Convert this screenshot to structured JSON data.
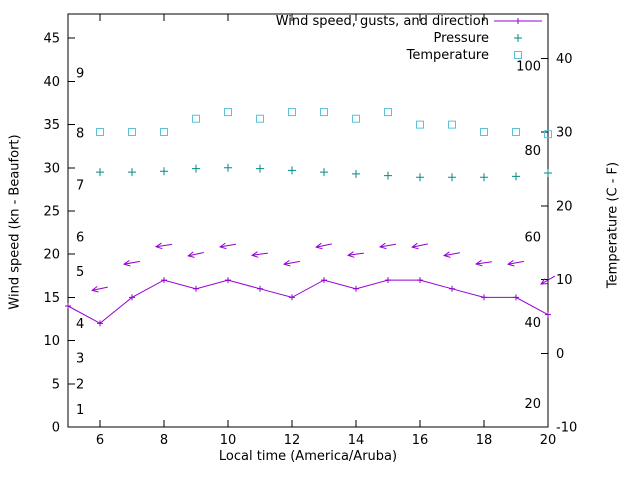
{
  "chart_data": {
    "type": "line",
    "title": "",
    "xlabel": "Local time (America/Aruba)",
    "ylabel_left": "Wind speed (kn - Beaufort)",
    "ylabel_right": "Temperature (C - F)",
    "x_range": [
      5,
      20
    ],
    "x_ticks": [
      6,
      8,
      10,
      12,
      14,
      16,
      18,
      20
    ],
    "y_left_range": [
      0,
      47.8
    ],
    "y_left_ticks": [
      0,
      5,
      10,
      15,
      20,
      25,
      30,
      35,
      40,
      45
    ],
    "y_right_range": [
      -10,
      46
    ],
    "y_right_ticks": [
      -10,
      0,
      10,
      20,
      30,
      40
    ],
    "beaufort_scale_labels": [
      {
        "label": "1",
        "kn": 2
      },
      {
        "label": "2",
        "kn": 5
      },
      {
        "label": "3",
        "kn": 8
      },
      {
        "label": "4",
        "kn": 12
      },
      {
        "label": "5",
        "kn": 18
      },
      {
        "label": "6",
        "kn": 22
      },
      {
        "label": "7",
        "kn": 28
      },
      {
        "label": "8",
        "kn": 34
      },
      {
        "label": "9",
        "kn": 41
      }
    ],
    "inner_right_labels": [
      {
        "label": "20",
        "kn": 2.7
      },
      {
        "label": "40",
        "kn": 12.1
      },
      {
        "label": "60",
        "kn": 22
      },
      {
        "label": "80",
        "kn": 32
      },
      {
        "label": "100",
        "kn": 41.8
      }
    ],
    "legend": {
      "position": "top-right",
      "entries": [
        {
          "label": "Wind speed, gusts, and direction",
          "series": "wind"
        },
        {
          "label": "Pressure",
          "series": "pressure"
        },
        {
          "label": "Temperature",
          "series": "temperature"
        }
      ]
    },
    "series": {
      "wind": {
        "name": "Wind speed",
        "color": "#9400d3",
        "axis": "left",
        "style": "line-plus",
        "x": [
          5,
          6,
          7,
          8,
          9,
          10,
          11,
          12,
          13,
          14,
          15,
          16,
          17,
          18,
          19,
          20
        ],
        "values": [
          14,
          12,
          15,
          17,
          16,
          17,
          16,
          15,
          17,
          16,
          17,
          17,
          16,
          15,
          15,
          13
        ]
      },
      "gusts": {
        "name": "Gusts",
        "color": "#9400d3",
        "axis": "left",
        "style": "arrow",
        "x": [
          6,
          7,
          8,
          9,
          10,
          11,
          12,
          13,
          14,
          15,
          16,
          17,
          18,
          19,
          20
        ],
        "values": [
          16,
          19,
          21,
          20,
          21,
          20,
          19,
          21,
          20,
          21,
          21,
          20,
          19,
          19,
          17
        ],
        "arrow_angles_deg": [
          168,
          170,
          172,
          168,
          170,
          172,
          170,
          168,
          172,
          170,
          168,
          170,
          172,
          170,
          150
        ]
      },
      "pressure": {
        "name": "Pressure",
        "color": "#008b8b",
        "axis": "left",
        "style": "plus",
        "x": [
          6,
          7,
          8,
          9,
          10,
          11,
          12,
          13,
          14,
          15,
          16,
          17,
          18,
          19,
          20
        ],
        "values": [
          29.5,
          29.5,
          29.6,
          29.9,
          30,
          29.9,
          29.7,
          29.5,
          29.3,
          29.1,
          28.9,
          28.9,
          28.9,
          29,
          29.4
        ]
      },
      "temperature": {
        "name": "Temperature",
        "color": "#5bc0de",
        "axis": "right",
        "style": "square",
        "x": [
          6,
          7,
          8,
          9,
          10,
          11,
          12,
          13,
          14,
          15,
          16,
          17,
          18,
          19,
          20
        ],
        "values": [
          30,
          30,
          30,
          31.8,
          32.7,
          31.8,
          32.7,
          32.7,
          31.8,
          32.7,
          31,
          31,
          30,
          30,
          29.7
        ]
      }
    }
  }
}
